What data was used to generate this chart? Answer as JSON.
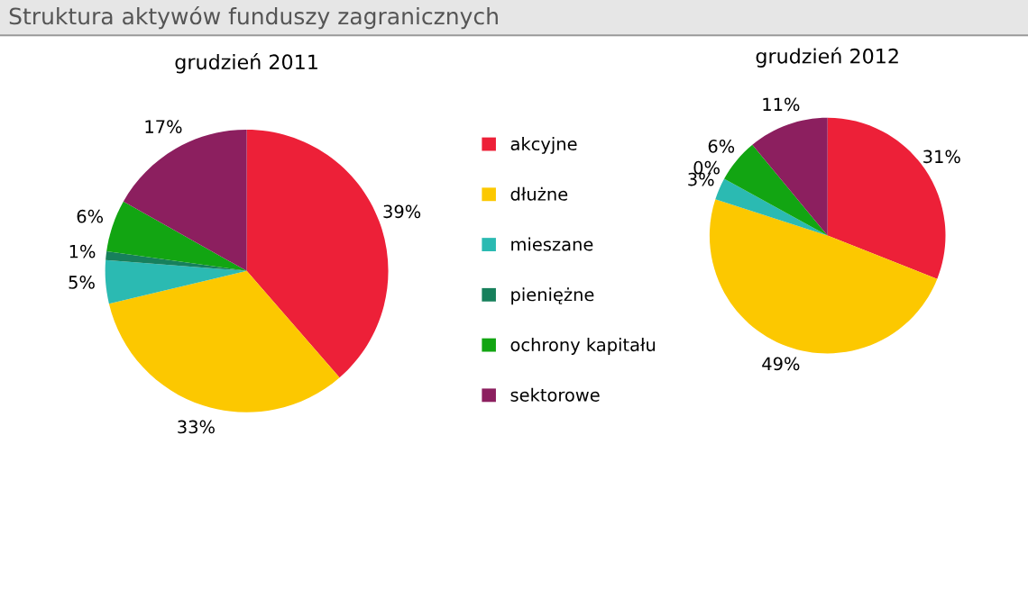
{
  "chart_data": [
    {
      "type": "pie",
      "title": "Struktura aktywów funduszy zagranicznych",
      "subtitle": "grudzień 2011",
      "categories": [
        "akcyjne",
        "dłużne",
        "mieszane",
        "pieniężne",
        "ochrony kapitału",
        "sektorowe"
      ],
      "values": [
        39,
        33,
        5,
        1,
        6,
        17
      ],
      "value_labels": [
        "39%",
        "33%",
        "5%",
        "1%",
        "6%",
        "17%"
      ],
      "colors": [
        "#ed2038",
        "#fcc800",
        "#2bbab2",
        "#17805c",
        "#12a512",
        "#8c1f5f"
      ],
      "legend": "right"
    },
    {
      "type": "pie",
      "subtitle": "grudzień 2012",
      "categories": [
        null,
        null,
        null,
        null,
        null,
        null
      ],
      "values": [
        31,
        49,
        3,
        0,
        6,
        11
      ],
      "value_labels": [
        "31%",
        "49%",
        "3%",
        "0%",
        "6%",
        "11%"
      ],
      "colors": [
        "#ed2038",
        "#fcc800",
        "#2bbab2",
        "#17805c",
        "#12a512",
        "#8c1f5f"
      ]
    }
  ]
}
